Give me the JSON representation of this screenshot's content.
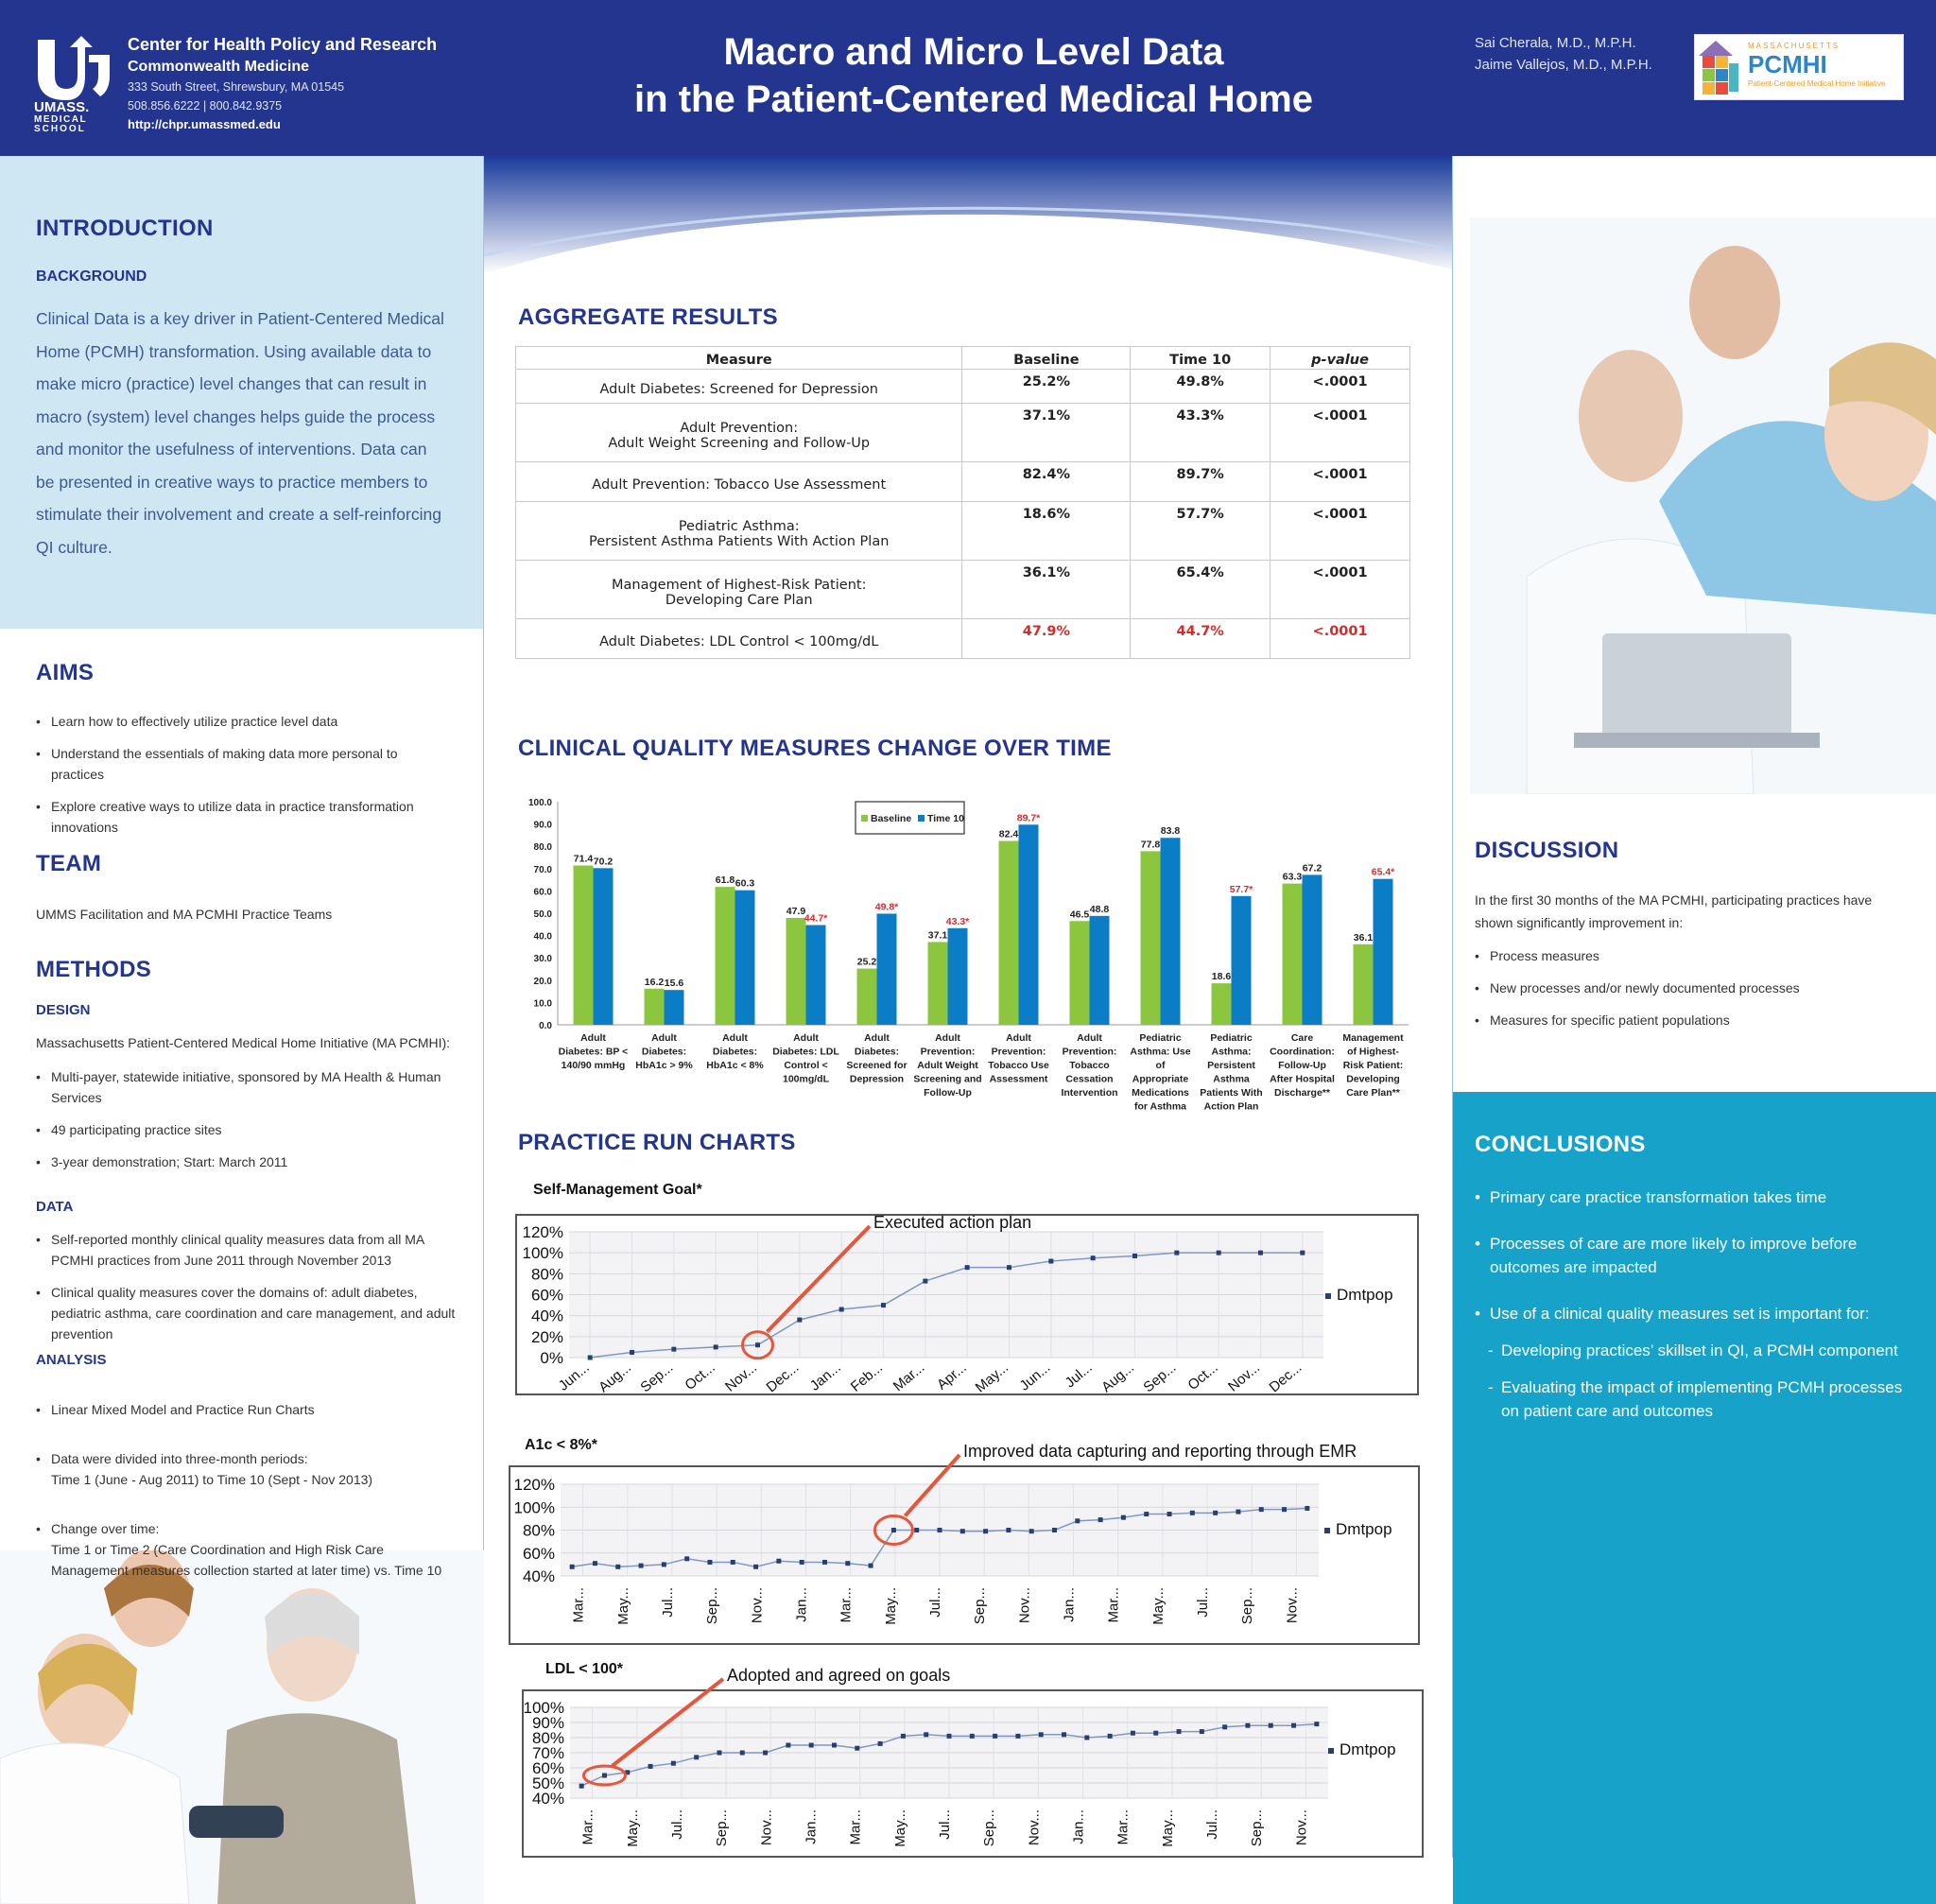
{
  "header": {
    "org_name": "Center for Health Policy and Research",
    "org_sub": "Commonwealth Medicine",
    "address": "333 South Street, Shrewsbury, MA 01545",
    "phone": "508.856.6222  |  800.842.9375",
    "url": "http://chpr.umassmed.edu",
    "title_line1": "Macro and Micro Level Data",
    "title_line2": "in the Patient-Centered Medical Home",
    "author1": "Sai Cherala, M.D., M.P.H.",
    "author2": "Jaime Vallejos, M.D., M.P.H.",
    "umass_logo": {
      "l1": "UMASS.",
      "l2": "MEDICAL",
      "l3": "SCHOOL"
    },
    "pcmhi_logo": {
      "l1": "MASSACHUSETTS",
      "l2": "PCMHI",
      "l3": "Patient-Centered Medical Home Initiative"
    }
  },
  "introduction": {
    "heading": "INTRODUCTION",
    "background_heading": "BACKGROUND",
    "background_lines": [
      "Clinical Data is a key driver in Patient-Centered Medical",
      "Home (PCMH) transformation. Using available data to",
      "make micro (practice) level changes that can result in",
      "macro (system) level changes helps guide the process",
      "and monitor the usefulness of interventions. Data can",
      "be presented in creative ways to practice members to",
      "stimulate their involvement and create a self-reinforcing",
      "QI culture."
    ]
  },
  "aims": {
    "heading": "AIMS",
    "items": [
      "Learn how to effectively utilize practice level data",
      "Understand the essentials of making data more personal  to practices",
      "Explore creative ways to utilize data in practice transformation innovations"
    ]
  },
  "team": {
    "heading": "TEAM",
    "text": "UMMS Facilitation and MA PCMHI Practice Teams"
  },
  "methods": {
    "heading": "METHODS",
    "design_heading": "DESIGN",
    "design_intro": "Massachusetts Patient-Centered Medical Home Initiative (MA PCMHI):",
    "design_items": [
      "Multi-payer, statewide initiative, sponsored by MA Health & Human Services",
      "49 participating practice sites",
      "3-year demonstration; Start: March 2011"
    ],
    "data_heading": "DATA",
    "data_items": [
      "Self-reported monthly clinical quality measures data from all MA PCMHI practices from June 2011 through November 2013",
      "Clinical quality measures cover the domains of: adult diabetes, pediatric asthma, care coordination and care management, and adult prevention"
    ],
    "analysis_heading": "ANALYSIS",
    "analysis_items": [
      "Linear Mixed Model and Practice Run Charts",
      "Data were divided into three-month periods:\nTime 1 (June - Aug 2011) to Time 10 (Sept - Nov 2013)",
      "Change over time:\nTime 1 or Time 2 (Care Coordination and High Risk Care Management measures collection started at later time) vs. Time 10"
    ]
  },
  "aggregate": {
    "heading": "AGGREGATE RESULTS",
    "columns": [
      "Measure",
      "Baseline",
      "Time 10",
      "p-value"
    ],
    "rows": [
      {
        "measure": [
          "Adult Diabetes: Screened for Depression"
        ],
        "baseline": "25.2%",
        "time10": "49.8%",
        "p": "<.0001",
        "red": false
      },
      {
        "measure": [
          "Adult Prevention:",
          "Adult Weight Screening and Follow-Up"
        ],
        "baseline": "37.1%",
        "time10": "43.3%",
        "p": "<.0001",
        "red": false
      },
      {
        "measure": [
          "Adult Prevention: Tobacco Use Assessment"
        ],
        "baseline": "82.4%",
        "time10": "89.7%",
        "p": "<.0001",
        "red": false
      },
      {
        "measure": [
          "Pediatric Asthma:",
          "Persistent Asthma Patients With Action Plan"
        ],
        "baseline": "18.6%",
        "time10": "57.7%",
        "p": "<.0001",
        "red": false
      },
      {
        "measure": [
          "Management of Highest-Risk Patient:",
          "Developing Care Plan"
        ],
        "baseline": "36.1%",
        "time10": "65.4%",
        "p": "<.0001",
        "red": false
      },
      {
        "measure": [
          "Adult Diabetes: LDL Control < 100mg/dL"
        ],
        "baseline": "47.9%",
        "time10": "44.7%",
        "p": "<.0001",
        "red": true
      }
    ]
  },
  "cqm": {
    "heading": "CLINICAL QUALITY MEASURES CHANGE OVER TIME"
  },
  "runcharts": {
    "heading": "PRACTICE RUN CHARTS"
  },
  "discussion": {
    "heading": "DISCUSSION",
    "intro": "In the first 30 months of the MA PCMHI, participating practices have shown significantly improvement in:",
    "items": [
      "Process measures",
      "New processes and/or newly documented processes",
      "Measures for specific patient populations"
    ]
  },
  "conclusions": {
    "heading": "CONCLUSIONS",
    "items": [
      "Primary care practice transformation takes time",
      "Processes of care are more likely to improve before outcomes are impacted",
      "Use of a clinical quality measures set is important for:"
    ],
    "subitems": [
      "Developing practices’ skillset in QI, a PCMH component",
      "Evaluating the impact of implementing PCMH processes on patient care and outcomes"
    ]
  },
  "chart_data": [
    {
      "type": "bar",
      "title": "",
      "ylim": [
        0,
        100
      ],
      "yticks": [
        "0.0",
        "10.0",
        "20.0",
        "30.0",
        "40.0",
        "50.0",
        "60.0",
        "70.0",
        "80.0",
        "90.0",
        "100.0"
      ],
      "legend": "top-center",
      "categories": [
        [
          "Adult",
          "Diabetes: BP <",
          "140/90 mmHg"
        ],
        [
          "Adult",
          "Diabetes:",
          "HbA1c > 9%"
        ],
        [
          "Adult",
          "Diabetes:",
          "HbA1c < 8%"
        ],
        [
          "Adult",
          "Diabetes: LDL",
          "Control <",
          "100mg/dL"
        ],
        [
          "Adult",
          "Diabetes:",
          "Screened for",
          "Depression"
        ],
        [
          "Adult",
          "Prevention:",
          "Adult Weight",
          "Screening and",
          "Follow-Up"
        ],
        [
          "Adult",
          "Prevention:",
          "Tobacco Use",
          "Assessment"
        ],
        [
          "Adult",
          "Prevention:",
          "Tobacco",
          "Cessation",
          "Intervention"
        ],
        [
          "Pediatric",
          "Asthma: Use",
          "of",
          "Appropriate",
          "Medications",
          "for Asthma"
        ],
        [
          "Pediatric",
          "Asthma:",
          "Persistent",
          "Asthma",
          "Patients With",
          "Action Plan"
        ],
        [
          "Care",
          "Coordination:",
          "Follow-Up",
          "After Hospital",
          "Discharge**"
        ],
        [
          "Management",
          "of Highest-",
          "Risk Patient:",
          "Developing",
          "Care Plan**"
        ]
      ],
      "series": [
        {
          "name": "Baseline",
          "color": "#8cc63f",
          "values": [
            71.4,
            16.2,
            61.8,
            47.9,
            25.2,
            37.1,
            82.4,
            46.5,
            77.8,
            18.6,
            63.3,
            36.1
          ],
          "labels": [
            "71.4",
            "16.2",
            "61.8",
            "47.9",
            "25.2",
            "37.1",
            "82.4",
            "46.5",
            "77.8",
            "18.6",
            "63.3",
            "36.1"
          ]
        },
        {
          "name": "Time 10",
          "color": "#0b7dc6",
          "values": [
            70.2,
            15.6,
            60.3,
            44.7,
            49.8,
            43.3,
            89.7,
            48.8,
            83.8,
            57.7,
            67.2,
            65.4
          ],
          "labels": [
            "70.2",
            "15.6",
            "60.3",
            "44.7*",
            "49.8*",
            "43.3*",
            "89.7*",
            "48.8",
            "83.8",
            "57.7*",
            "67.2",
            "65.4*"
          ],
          "red": [
            false,
            false,
            false,
            true,
            true,
            true,
            true,
            false,
            false,
            true,
            false,
            true
          ]
        }
      ]
    },
    {
      "type": "line",
      "title": "Self-Management Goal*",
      "annotation": "Executed action plan",
      "series_name": "Dmtpop",
      "yticks": [
        "0%",
        "20%",
        "40%",
        "60%",
        "80%",
        "100%",
        "120%"
      ],
      "ylim": [
        0,
        120
      ],
      "xlabels": [
        "Jun...",
        "Aug...",
        "Sep...",
        "Oct...",
        "Nov...",
        "Dec...",
        "Jan...",
        "Feb...",
        "Mar...",
        "Apr...",
        "May...",
        "Jun...",
        "Jul...",
        "Aug...",
        "Sep...",
        "Oct...",
        "Nov...",
        "Dec..."
      ],
      "values": [
        0,
        5,
        8,
        10,
        12,
        36,
        46,
        50,
        73,
        86,
        86,
        92,
        95,
        97,
        100,
        100,
        100,
        100
      ]
    },
    {
      "type": "line",
      "title": "A1c < 8%*",
      "annotation": "Improved data capturing and reporting through EMR",
      "series_name": "Dmtpop",
      "yticks": [
        "40%",
        "60%",
        "80%",
        "100%",
        "120%"
      ],
      "ylim": [
        40,
        120
      ],
      "xlabels": [
        "Mar...",
        "May...",
        "Jul...",
        "Sep...",
        "Nov...",
        "Jan...",
        "Mar...",
        "May...",
        "Jul...",
        "Sep...",
        "Nov...",
        "Jan...",
        "Mar...",
        "May...",
        "Jul...",
        "Sep...",
        "Nov..."
      ],
      "values": [
        48,
        51,
        48,
        49,
        50,
        55,
        52,
        52,
        48,
        53,
        52,
        52,
        51,
        49,
        80,
        80,
        80,
        79,
        79,
        80,
        79,
        80,
        88,
        89,
        91,
        94,
        94,
        95,
        95,
        96,
        98,
        98,
        99
      ]
    },
    {
      "type": "line",
      "title": "LDL < 100*",
      "annotation": "Adopted and agreed on goals",
      "series_name": "Dmtpop",
      "yticks": [
        "40%",
        "50%",
        "60%",
        "70%",
        "80%",
        "90%",
        "100%"
      ],
      "ylim": [
        40,
        100
      ],
      "xlabels": [
        "Mar...",
        "May...",
        "Jul...",
        "Sep...",
        "Nov...",
        "Jan...",
        "Mar...",
        "May...",
        "Jul...",
        "Sep...",
        "Nov...",
        "Jan...",
        "Mar...",
        "May...",
        "Jul...",
        "Sep...",
        "Nov..."
      ],
      "values": [
        48,
        55,
        57,
        61,
        63,
        67,
        70,
        70,
        70,
        75,
        75,
        75,
        73,
        76,
        81,
        82,
        81,
        81,
        81,
        81,
        82,
        82,
        80,
        81,
        83,
        83,
        84,
        84,
        87,
        88,
        88,
        88,
        89
      ]
    }
  ]
}
